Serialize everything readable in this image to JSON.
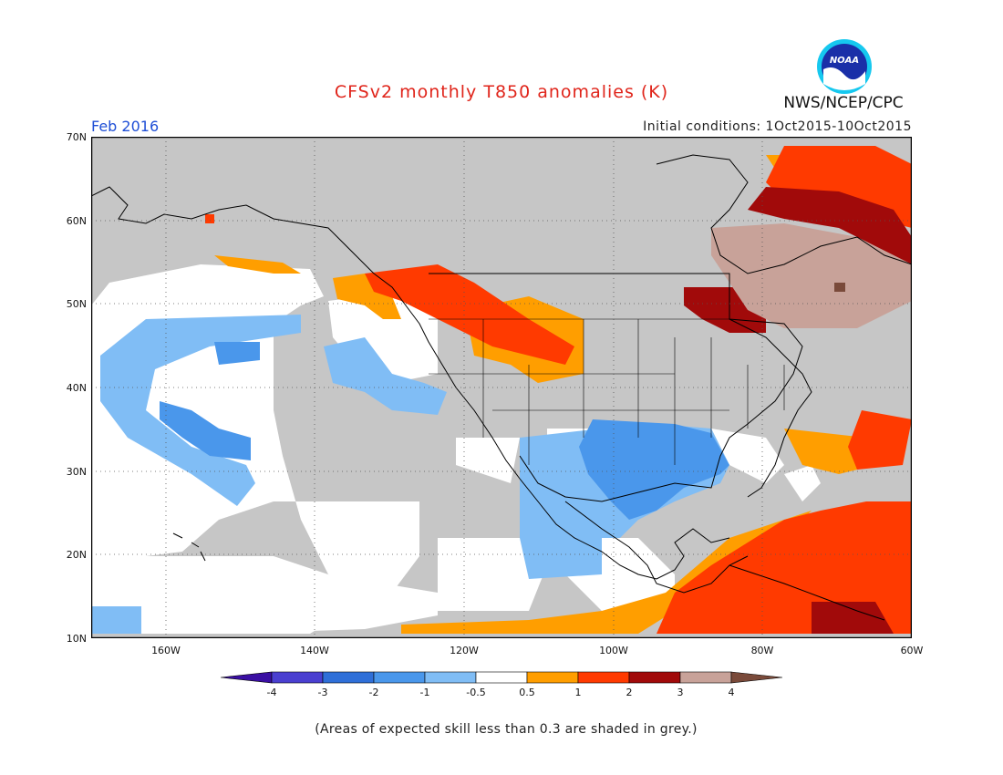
{
  "title": "CFSv2 monthly T850 anomalies (K)",
  "valid_month": "Feb 2016",
  "initial_conditions": "Initial conditions: 1Oct2015-10Oct2015",
  "agency": "NWS/NCEP/CPC",
  "logo_text": "NOAA",
  "footnote": "(Areas of expected skill less than 0.3 are shaded in grey.)",
  "map": {
    "lon_range": [
      -170,
      -60
    ],
    "lat_range": [
      10,
      70
    ],
    "lon_labels": [
      "160W",
      "140W",
      "120W",
      "100W",
      "80W",
      "60W"
    ],
    "lat_labels": [
      "70N",
      "60N",
      "50N",
      "40N",
      "30N",
      "20N",
      "10N"
    ],
    "grid_style": "dotted"
  },
  "colorbar": {
    "levels": [
      "-4",
      "-3",
      "-2",
      "-1",
      "-0.5",
      "0.5",
      "1",
      "2",
      "3",
      "4"
    ],
    "colors": [
      "#3a0fa3",
      "#4a3fd0",
      "#2f6fd8",
      "#4a97eb",
      "#80bdf5",
      "#ffffff",
      "#ff9e00",
      "#ff3a00",
      "#a10a0a",
      "#c8a299",
      "#7a4a3a"
    ],
    "grey_color": "#c6c6c6"
  }
}
